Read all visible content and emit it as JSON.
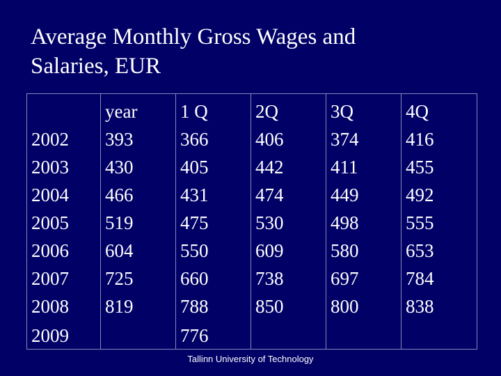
{
  "title_line1": "Average Monthly Gross Wages and",
  "title_line2": "Salaries,  EUR",
  "table": {
    "headers": [
      "",
      "year",
      "1 Q",
      "2Q",
      "3Q",
      "4Q"
    ],
    "rows": [
      [
        "2002",
        "393",
        "366",
        "406",
        "374",
        "416"
      ],
      [
        "2003",
        "430",
        "405",
        "442",
        "411",
        "455"
      ],
      [
        "2004",
        "466",
        "431",
        "474",
        "449",
        "492"
      ],
      [
        "2005",
        "519",
        "475",
        "530",
        "498",
        "555"
      ],
      [
        "2006",
        "604",
        "550",
        "609",
        "580",
        "653"
      ],
      [
        "2007",
        "725",
        "660",
        "738",
        "697",
        "784"
      ],
      [
        "2008",
        "819",
        "788",
        "850",
        "800",
        "838"
      ],
      [
        "2009",
        "",
        "776",
        "",
        "",
        ""
      ]
    ]
  },
  "footer": "Tallinn University of Technology",
  "colors": {
    "background": "#000066",
    "text": "#ffffff",
    "grid": "#8a8ab8"
  }
}
